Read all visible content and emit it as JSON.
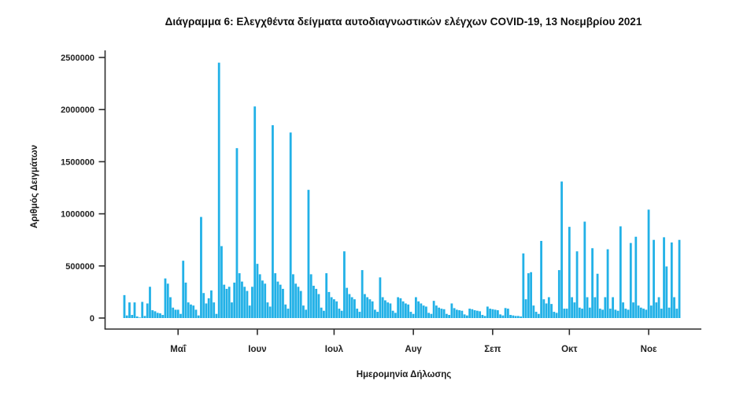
{
  "page": {
    "background_color": "#ffffff"
  },
  "chart_data": {
    "type": "bar",
    "title": "Διάγραμμα 6: Ελεγχθέντα δείγματα αυτοδιαγνωστικών ελέγχων COVID-19, 13 Νοεμβρίου 2021",
    "xlabel": "Ημερομηνία Δήλωσης",
    "ylabel": "Αριθμός Δειγμάτων",
    "bar_color": "#22b1e7",
    "axis_color": "#2d2d2d",
    "grid": "off",
    "legend": "none",
    "frequency": "daily",
    "start_date": "2021-04-10",
    "end_date": "2021-11-13",
    "ylim": [
      0,
      2500000
    ],
    "y_ticks": [
      0,
      500000,
      1000000,
      1500000,
      2000000,
      2500000
    ],
    "y_tick_labels": [
      "0",
      "500000",
      "1000000",
      "1500000",
      "2000000",
      "2500000"
    ],
    "x_tick_labels": [
      "Μαΐ",
      "Ιουν",
      "Ιουλ",
      "Αυγ",
      "Σεπ",
      "Οκτ",
      "Νοε"
    ],
    "x_tick_day_index": [
      21,
      52,
      82,
      113,
      144,
      174,
      205
    ],
    "values": [
      220000,
      25000,
      150000,
      30000,
      150000,
      15000,
      5000,
      155000,
      20000,
      140000,
      300000,
      75000,
      65000,
      50000,
      45000,
      30000,
      380000,
      330000,
      200000,
      100000,
      80000,
      80000,
      40000,
      550000,
      340000,
      150000,
      130000,
      120000,
      80000,
      25000,
      970000,
      240000,
      140000,
      190000,
      265000,
      150000,
      40000,
      2450000,
      690000,
      320000,
      280000,
      300000,
      150000,
      340000,
      1630000,
      430000,
      350000,
      300000,
      260000,
      120000,
      300000,
      2030000,
      520000,
      420000,
      360000,
      330000,
      150000,
      110000,
      1850000,
      430000,
      350000,
      320000,
      280000,
      130000,
      90000,
      1780000,
      420000,
      330000,
      300000,
      260000,
      120000,
      80000,
      1230000,
      420000,
      310000,
      280000,
      230000,
      100000,
      70000,
      430000,
      250000,
      200000,
      180000,
      160000,
      90000,
      70000,
      640000,
      290000,
      230000,
      200000,
      180000,
      90000,
      60000,
      460000,
      230000,
      200000,
      180000,
      160000,
      80000,
      60000,
      390000,
      200000,
      170000,
      150000,
      140000,
      70000,
      50000,
      200000,
      190000,
      160000,
      140000,
      130000,
      60000,
      40000,
      200000,
      160000,
      140000,
      120000,
      110000,
      50000,
      40000,
      165000,
      120000,
      100000,
      90000,
      85000,
      40000,
      30000,
      140000,
      95000,
      80000,
      75000,
      70000,
      35000,
      25000,
      90000,
      85000,
      75000,
      70000,
      65000,
      30000,
      20000,
      110000,
      90000,
      85000,
      80000,
      75000,
      35000,
      25000,
      96000,
      90000,
      30000,
      25000,
      20000,
      20000,
      15000,
      620000,
      180000,
      430000,
      440000,
      120000,
      60000,
      40000,
      740000,
      180000,
      140000,
      200000,
      135000,
      60000,
      50000,
      460000,
      1310000,
      90000,
      90000,
      875000,
      200000,
      150000,
      640000,
      100000,
      90000,
      925000,
      200000,
      100000,
      670000,
      200000,
      425000,
      90000,
      80000,
      200000,
      660000,
      90000,
      200000,
      80000,
      70000,
      880000,
      150000,
      90000,
      80000,
      720000,
      150000,
      780000,
      120000,
      100000,
      90000,
      80000,
      1040000,
      120000,
      750000,
      150000,
      200000,
      90000,
      775000,
      495000,
      100000,
      725000,
      200000,
      90000,
      750000
    ]
  }
}
